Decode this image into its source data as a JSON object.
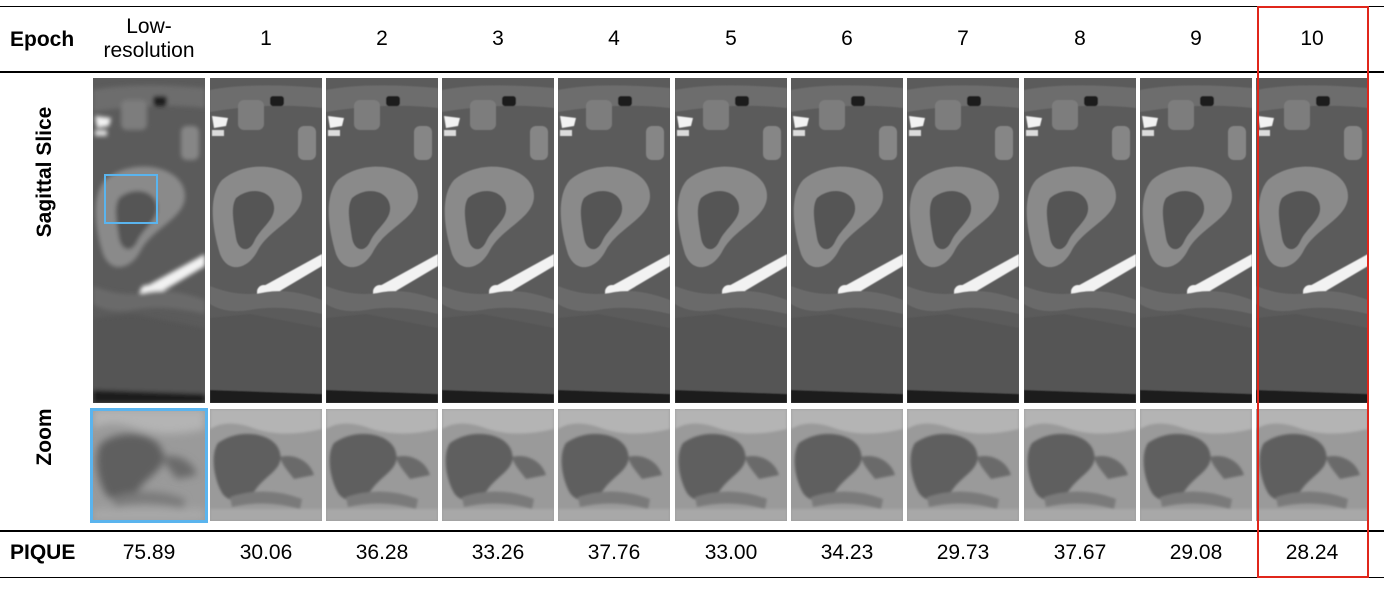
{
  "header": {
    "row_label": "Epoch",
    "columns": [
      "Low-\nresolution",
      "1",
      "2",
      "3",
      "4",
      "5",
      "6",
      "7",
      "8",
      "9",
      "10"
    ]
  },
  "rows": {
    "sagittal_label": "Sagittal Slice",
    "zoom_label": "Zoom",
    "metric_label": "PIQUE"
  },
  "pique_values": [
    "75.89",
    "30.06",
    "36.28",
    "33.26",
    "37.76",
    "33.00",
    "34.23",
    "29.73",
    "37.67",
    "29.08",
    "28.24"
  ],
  "highlight": {
    "best_column": "10",
    "best_box_color": "#e0261b",
    "roi_color": "#5ab4ee"
  },
  "colors": {
    "tissue_background": "#5b5b5b",
    "kidney": "#8a8a8a",
    "bone": "#f2f2f2",
    "rules": "#000000"
  }
}
